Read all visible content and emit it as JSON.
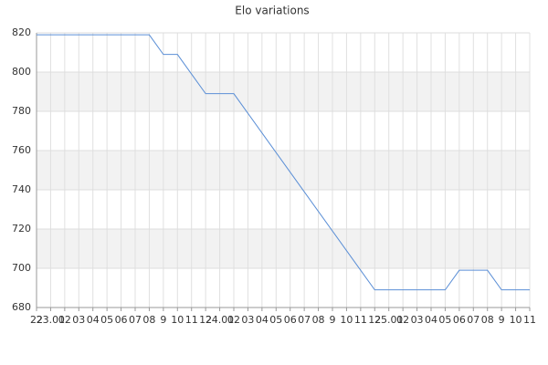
{
  "chart_data": {
    "type": "line",
    "title": "Elo variations",
    "categories": [
      "22",
      "23.01",
      "02",
      "03",
      "04",
      "05",
      "06",
      "07",
      "08",
      "9",
      "10",
      "11",
      "12",
      "24.01",
      "02",
      "03",
      "04",
      "05",
      "06",
      "07",
      "08",
      "9",
      "10",
      "11",
      "12",
      "25.01",
      "02",
      "03",
      "04",
      "05",
      "06",
      "07",
      "08",
      "9",
      "10",
      "11"
    ],
    "series": [
      {
        "name": "Elo",
        "color": "#5b8fd6",
        "values": [
          819,
          819,
          819,
          819,
          819,
          819,
          819,
          819,
          819,
          809,
          809,
          799,
          789,
          789,
          789,
          779,
          769,
          759,
          749,
          739,
          729,
          719,
          709,
          699,
          689,
          689,
          689,
          689,
          689,
          689,
          699,
          699,
          699,
          689,
          689,
          689
        ]
      }
    ],
    "ylim": [
      680,
      820
    ],
    "yticks": [
      680,
      700,
      720,
      740,
      760,
      780,
      800,
      820
    ],
    "grid": true,
    "alternate_bands": true
  }
}
